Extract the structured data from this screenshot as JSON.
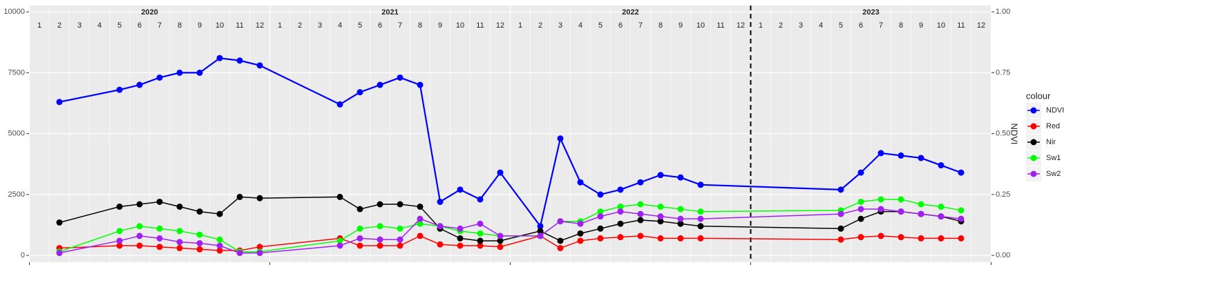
{
  "chart_data": {
    "type": "line",
    "x": [
      "2020-02",
      "2020-05",
      "2020-06",
      "2020-07",
      "2020-08",
      "2020-09",
      "2020-10",
      "2020-11",
      "2020-12",
      "2021-04",
      "2021-05",
      "2021-06",
      "2021-07",
      "2021-08",
      "2021-09",
      "2021-10",
      "2021-11",
      "2021-12",
      "2022-02",
      "2022-03",
      "2022-04",
      "2022-05",
      "2022-06",
      "2022-07",
      "2022-08",
      "2022-09",
      "2022-10",
      "2023-05",
      "2023-06",
      "2023-07",
      "2023-08",
      "2023-09",
      "2023-10",
      "2023-11"
    ],
    "series": [
      {
        "name": "NDVI",
        "color": "#0000ff",
        "axis": "y2",
        "values": [
          0.63,
          0.68,
          0.7,
          0.73,
          0.75,
          0.75,
          0.81,
          0.8,
          0.78,
          0.62,
          0.67,
          0.7,
          0.73,
          0.7,
          0.22,
          0.27,
          0.23,
          0.34,
          0.12,
          0.48,
          0.3,
          0.25,
          0.27,
          0.3,
          0.33,
          0.32,
          0.29,
          0.27,
          0.34,
          0.42,
          0.41,
          0.4,
          0.37,
          0.34
        ]
      },
      {
        "name": "Red",
        "color": "#ff0000",
        "values": [
          300,
          400,
          400,
          350,
          300,
          250,
          200,
          200,
          350,
          700,
          400,
          400,
          400,
          800,
          450,
          400,
          400,
          350,
          800,
          300,
          600,
          700,
          750,
          800,
          700,
          700,
          700,
          650,
          750,
          800,
          750,
          700,
          700,
          700
        ]
      },
      {
        "name": "Nir",
        "color": "#000000",
        "values": [
          1350,
          2000,
          2100,
          2200,
          2000,
          1800,
          1700,
          2400,
          2350,
          2400,
          1900,
          2100,
          2100,
          2000,
          1100,
          700,
          600,
          600,
          1000,
          600,
          900,
          1100,
          1300,
          1450,
          1400,
          1300,
          1200,
          1100,
          1500,
          1800,
          1800,
          1700,
          1600,
          1400
        ]
      },
      {
        "name": "Sw1",
        "color": "#00ff00",
        "values": [
          150,
          1000,
          1200,
          1100,
          1000,
          850,
          650,
          150,
          150,
          600,
          1100,
          1200,
          1100,
          1300,
          1200,
          1000,
          900,
          800,
          800,
          1400,
          1400,
          1800,
          2000,
          2100,
          2000,
          1900,
          1800,
          1850,
          2200,
          2300,
          2300,
          2100,
          2000,
          1850
        ]
      },
      {
        "name": "Sw2",
        "color": "#a020f0",
        "values": [
          100,
          600,
          800,
          700,
          550,
          500,
          400,
          100,
          100,
          400,
          700,
          650,
          650,
          1500,
          1200,
          1100,
          1300,
          800,
          800,
          1400,
          1300,
          1600,
          1800,
          1700,
          1600,
          1500,
          1500,
          1700,
          1900,
          1900,
          1800,
          1700,
          1600,
          1500
        ]
      }
    ],
    "years": [
      "2020",
      "2021",
      "2022",
      "2023"
    ],
    "months": [
      "1",
      "2",
      "3",
      "4",
      "5",
      "6",
      "7",
      "8",
      "9",
      "10",
      "11",
      "12"
    ],
    "vline_x": "2023-01",
    "ylim": [
      -280,
      10260
    ],
    "yticks": [
      0,
      2500,
      5000,
      7500,
      10000
    ],
    "y2lim": [
      -0.028,
      1.026
    ],
    "y2ticks": [
      {
        "value": 0,
        "label": "0.00"
      },
      {
        "value": 0.25,
        "label": "0.25"
      },
      {
        "value": 0.5,
        "label": "0.50"
      },
      {
        "value": 0.75,
        "label": "0.75"
      },
      {
        "value": 1,
        "label": "1.00"
      }
    ],
    "y2label": "NDVI",
    "legend_title": "colour",
    "legend": "right",
    "grid": true
  }
}
